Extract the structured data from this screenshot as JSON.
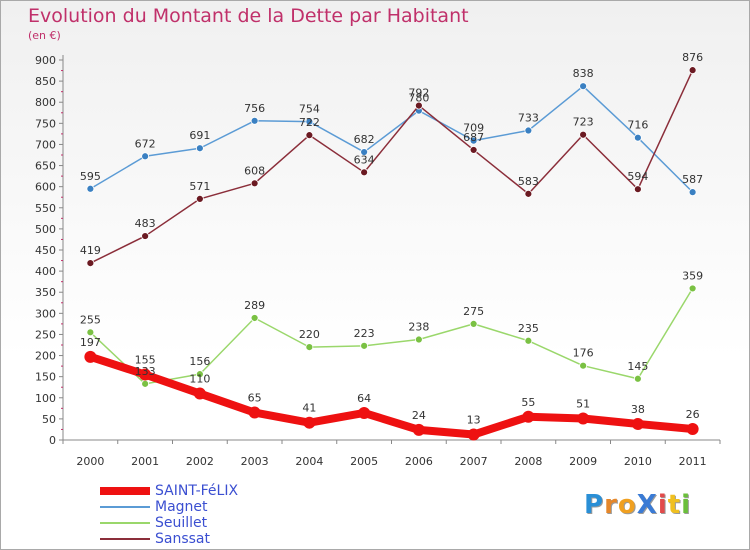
{
  "title": "Evolution du Montant de la Dette par Habitant",
  "unit": "(en €)",
  "logo": {
    "text": "ProXiti",
    "colors": [
      "#2a8fd6",
      "#e5872a",
      "#f0a020",
      "#3a7bd5",
      "#e24a4a",
      "#f0c020",
      "#6bbf3b"
    ]
  },
  "chart_data": {
    "type": "line",
    "categories": [
      "2000",
      "2001",
      "2002",
      "2003",
      "2004",
      "2005",
      "2006",
      "2007",
      "2008",
      "2009",
      "2010",
      "2011"
    ],
    "ylim": [
      0,
      900
    ],
    "yticks": [
      0,
      50,
      100,
      150,
      200,
      250,
      300,
      350,
      400,
      450,
      500,
      550,
      600,
      650,
      700,
      750,
      800,
      850,
      900
    ],
    "grid": false,
    "legend_position": "bottom-left",
    "series": [
      {
        "name": "Magnet",
        "color": "#5b9bd5",
        "marker": "#3a80c2",
        "width": 1.5,
        "values": [
          595,
          672,
          691,
          756,
          754,
          682,
          780,
          709,
          733,
          838,
          716,
          587
        ]
      },
      {
        "name": "Seuillet",
        "color": "#9ad76b",
        "marker": "#7ac143",
        "width": 1.5,
        "values": [
          255,
          133,
          156,
          289,
          220,
          223,
          238,
          275,
          235,
          176,
          145,
          359
        ]
      },
      {
        "name": "Sanssat",
        "color": "#8b2e3a",
        "marker": "#6b1a22",
        "width": 1.5,
        "values": [
          419,
          483,
          571,
          608,
          722,
          634,
          792,
          687,
          583,
          723,
          594,
          876
        ]
      },
      {
        "name": "SAINT-FéLIX",
        "color": "#ee1111",
        "marker": "#ee1111",
        "width": 8,
        "values": [
          197,
          155,
          110,
          65,
          41,
          64,
          24,
          13,
          55,
          51,
          38,
          26
        ]
      }
    ],
    "legend": [
      {
        "name": "SAINT-FéLIX",
        "color": "#ee1111",
        "thickness": 8
      },
      {
        "name": "Magnet",
        "color": "#5b9bd5",
        "thickness": 2
      },
      {
        "name": "Seuillet",
        "color": "#9ad76b",
        "thickness": 2
      },
      {
        "name": "Sanssat",
        "color": "#8b2e3a",
        "thickness": 2
      }
    ]
  }
}
